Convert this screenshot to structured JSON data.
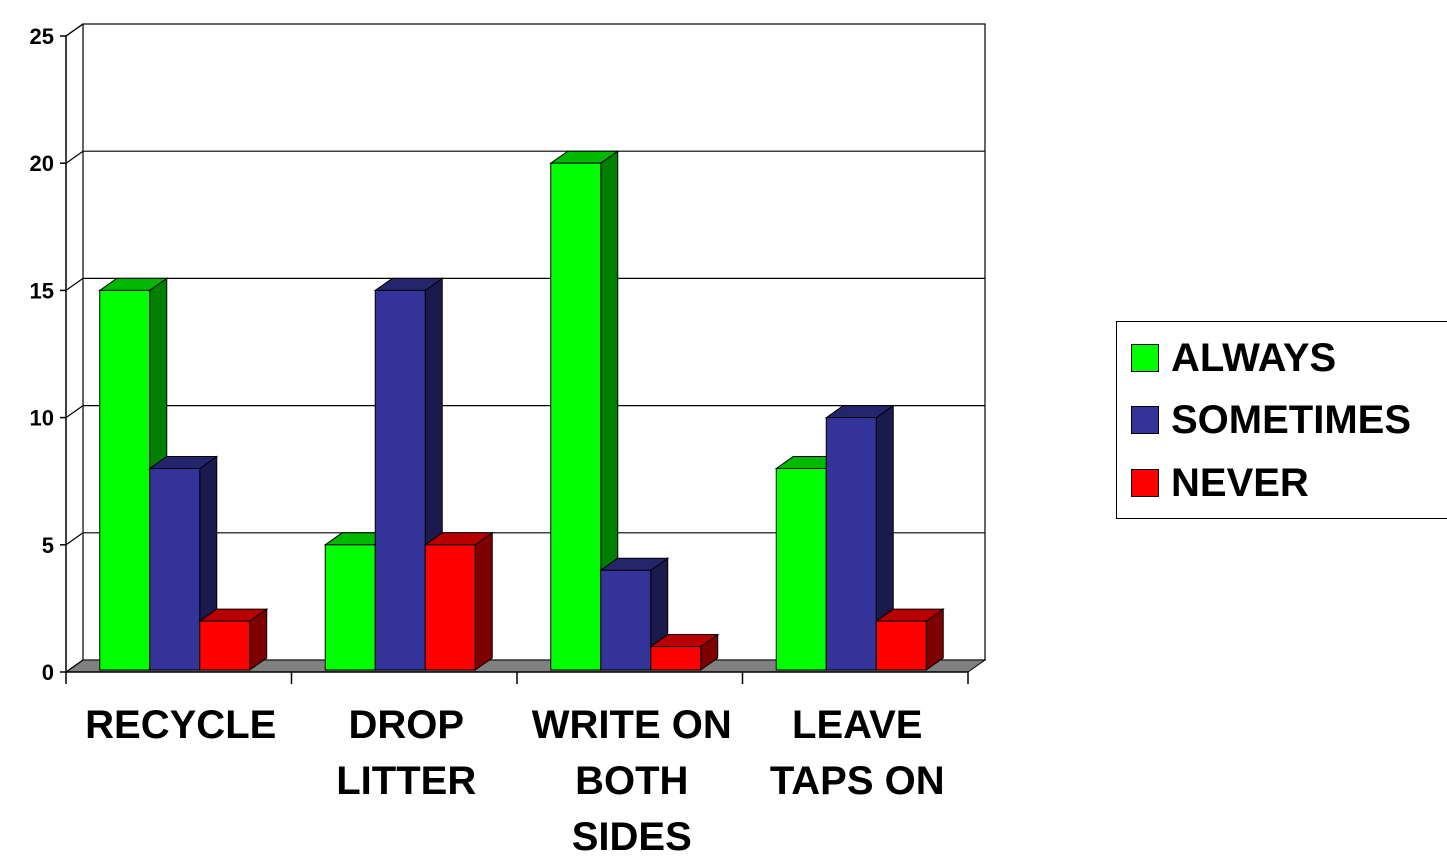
{
  "chart_data": {
    "type": "bar",
    "title": "",
    "xlabel": "",
    "ylabel": "",
    "ylim": [
      0,
      25
    ],
    "yticks": [
      "0",
      "5",
      "10",
      "15",
      "20",
      "25"
    ],
    "grid": true,
    "legend_position": "right",
    "categories": [
      [
        "RECYCLE"
      ],
      [
        "DROP",
        "LITTER"
      ],
      [
        "WRITE ON",
        "BOTH",
        "SIDES"
      ],
      [
        "LEAVE",
        "TAPS ON"
      ]
    ],
    "series": [
      {
        "name": "ALWAYS",
        "color": "#00ff00",
        "values": [
          15,
          5,
          20,
          8
        ]
      },
      {
        "name": "SOMETIMES",
        "color": "#333399",
        "values": [
          8,
          15,
          4,
          10
        ]
      },
      {
        "name": "NEVER",
        "color": "#ff0000",
        "values": [
          2,
          5,
          1,
          2
        ]
      }
    ]
  }
}
